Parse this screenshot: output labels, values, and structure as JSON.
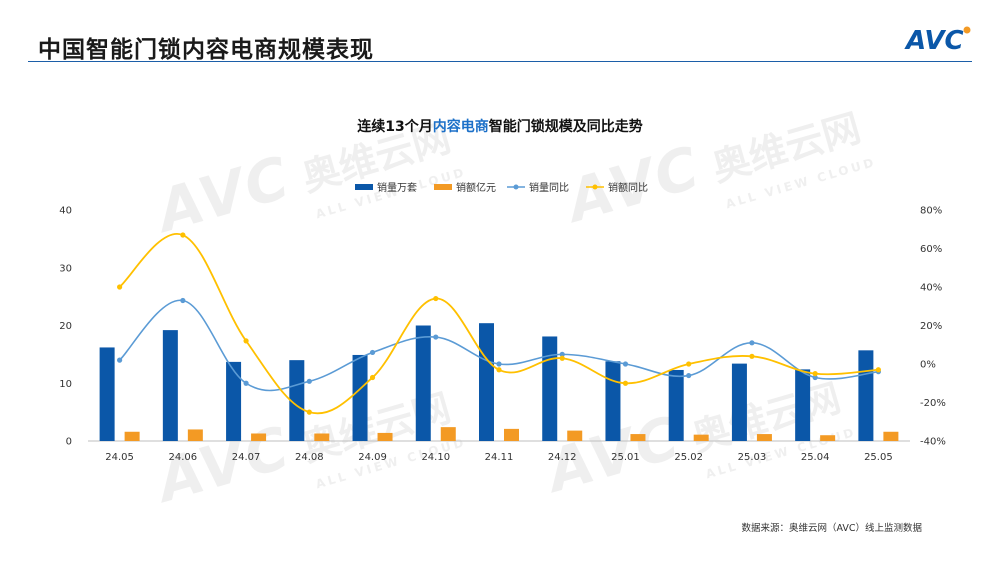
{
  "header": {
    "title": "中国智能门锁内容电商规模表现",
    "logo_text": "AVC"
  },
  "colors": {
    "bar_sales_volume": "#0b57a8",
    "bar_sales_amount": "#f39a24",
    "line_volume_yoy": "#5b9bd5",
    "line_amount_yoy": "#ffc000",
    "header_line": "#1c5ea8",
    "title_highlight": "#1c70c8"
  },
  "chart_data": {
    "type": "bar",
    "title_prefix": "连续13个月",
    "title_highlight": "内容电商",
    "title_suffix": "智能门锁规模及同比走势",
    "categories": [
      "24.05",
      "24.06",
      "24.07",
      "24.08",
      "24.09",
      "24.10",
      "24.11",
      "24.12",
      "25.01",
      "25.02",
      "25.03",
      "25.04",
      "25.05"
    ],
    "left_axis": {
      "ylim": [
        0,
        40
      ],
      "ticks": [
        "0",
        "10",
        "20",
        "30",
        "40"
      ]
    },
    "right_axis": {
      "ylim": [
        -40,
        80
      ],
      "ticks": [
        "-40%",
        "-20%",
        "0%",
        "20%",
        "40%",
        "60%",
        "80%"
      ]
    },
    "legend_position": "top-center",
    "grid": false,
    "series": [
      {
        "name": "销量万套",
        "kind": "bar",
        "axis": "left",
        "values": [
          16.2,
          19.2,
          13.7,
          14.0,
          14.9,
          20.0,
          20.4,
          18.1,
          13.8,
          12.3,
          13.4,
          12.4,
          15.7
        ]
      },
      {
        "name": "销额亿元",
        "kind": "bar",
        "axis": "left",
        "values": [
          1.6,
          2.0,
          1.3,
          1.3,
          1.4,
          2.4,
          2.1,
          1.8,
          1.2,
          1.1,
          1.2,
          1.0,
          1.6
        ]
      },
      {
        "name": "销量同比",
        "kind": "line",
        "axis": "right",
        "values": [
          2,
          33,
          -10,
          -9,
          6,
          14,
          0,
          5,
          0,
          -6,
          11,
          -7,
          -4
        ]
      },
      {
        "name": "销额同比",
        "kind": "line",
        "axis": "right",
        "values": [
          40,
          67,
          12,
          -25,
          -7,
          34,
          -3,
          3,
          -10,
          0,
          4,
          -5,
          -3
        ]
      }
    ]
  },
  "footer": {
    "source": "数据来源：奥维云网（AVC）线上监测数据"
  },
  "watermark": {
    "logo": "AVC",
    "brand_cn": "奥维云网",
    "brand_en": "ALL VIEW CLOUD"
  }
}
